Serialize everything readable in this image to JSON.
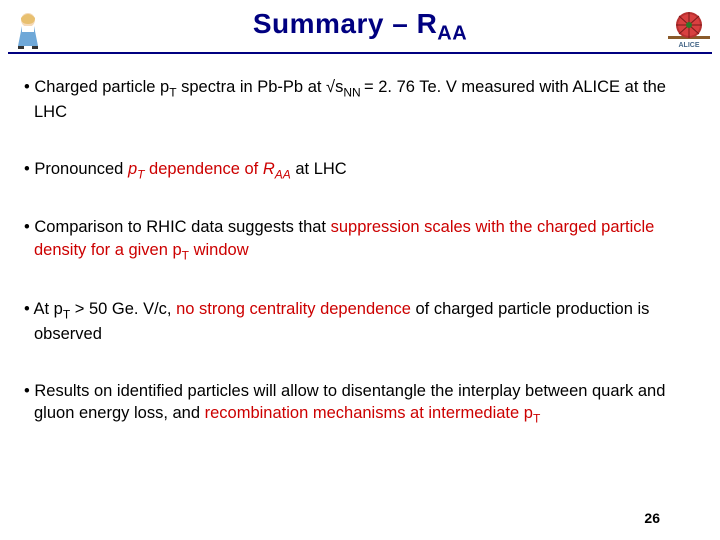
{
  "title": {
    "prefix": "Summary –  ",
    "r": "R",
    "sub": "AA"
  },
  "bullets": [
    {
      "parts": [
        {
          "t": "• Charged particle p"
        },
        {
          "t": "T",
          "cls": "sub-t"
        },
        {
          "t": " spectra in Pb-Pb at √s"
        },
        {
          "t": "NN ",
          "cls": "sub-nn"
        },
        {
          "t": "= 2. 76 Te. V measured with ALICE at the LHC"
        }
      ]
    },
    {
      "parts": [
        {
          "t": "• Pronounced "
        },
        {
          "t": "p",
          "cls": "ital hl"
        },
        {
          "t": "T",
          "cls": "sub-t ital hl"
        },
        {
          "t": " dependence of ",
          "cls": "hl"
        },
        {
          "t": "R",
          "cls": "ital hl"
        },
        {
          "t": "AA",
          "cls": "sub-aa hl"
        },
        {
          "t": " at LHC"
        }
      ]
    },
    {
      "parts": [
        {
          "t": "• Comparison to RHIC data suggests that "
        },
        {
          "t": "suppression scales with the charged particle density for a given p",
          "cls": "hl"
        },
        {
          "t": "T",
          "cls": "sub-t hl"
        },
        {
          "t": " window",
          "cls": "hl"
        }
      ]
    },
    {
      "parts": [
        {
          "t": "• At p"
        },
        {
          "t": "T",
          "cls": "sub-t"
        },
        {
          "t": " > 50 Ge. V/c, "
        },
        {
          "t": "no strong centrality dependence",
          "cls": "hl"
        },
        {
          "t": " of charged particle production is observed"
        }
      ]
    },
    {
      "parts": [
        {
          "t": "• Results on identified particles will allow to disentangle the interplay between quark and gluon energy loss, and "
        },
        {
          "t": "recombination mechanisms at intermediate p",
          "cls": "hl"
        },
        {
          "t": "T",
          "cls": "sub-t hl"
        }
      ]
    }
  ],
  "page_number": "26",
  "colors": {
    "title": "#000080",
    "rule": "#000080",
    "highlight": "#cc0000",
    "text": "#000000",
    "background": "#ffffff"
  },
  "typography": {
    "title_fontsize": 28,
    "body_fontsize": 16.5,
    "sub_fontsize": 12,
    "font_family": "Arial"
  },
  "logos": {
    "left_alt": "alice-character-icon",
    "right_alt": "alice-detector-icon"
  }
}
